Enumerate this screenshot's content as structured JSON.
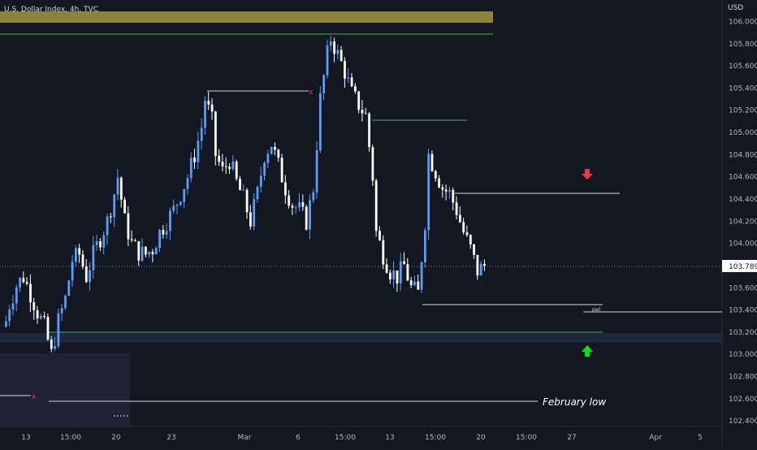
{
  "header": {
    "symbol_title": "U.S. Dollar Index, 4h, TVC"
  },
  "price_axis": {
    "currency_label": "USD",
    "ticks": [
      "106.000",
      "105.800",
      "105.600",
      "105.400",
      "105.200",
      "105.000",
      "104.800",
      "104.600",
      "104.400",
      "104.200",
      "104.000",
      "103.600",
      "103.400",
      "103.200",
      "103.000",
      "102.800",
      "102.600",
      "102.400"
    ],
    "current_price_label": "103.789"
  },
  "time_axis": {
    "ticks": [
      "13",
      "15:00",
      "20",
      "23",
      "Mar",
      "6",
      "15:00",
      "13",
      "15:00",
      "20",
      "15:00",
      "27",
      "Apr",
      "5"
    ]
  },
  "annotations": {
    "february_low_label": "February low",
    "pwl_label": "pwl"
  },
  "colors": {
    "background": "#131722",
    "candle_up": "#5b9cf6",
    "candle_down": "#ffffff",
    "level_green": "#4caf50",
    "level_white": "#d1d4dc",
    "supply_zone": "#8d8238",
    "demand_zone": "#1e2a3d",
    "arrow_down": "#f23645",
    "arrow_up": "#00e600",
    "x_marker": "#f23645"
  },
  "icons": {
    "bearish": "red-down-arrow-icon",
    "bullish": "green-up-arrow-icon",
    "sweep_marker": "x-marker-icon"
  },
  "chart_data": {
    "type": "candlestick",
    "title": "U.S. Dollar Index, 4h, TVC",
    "ylabel": "USD",
    "ylim": [
      102.35,
      106.25
    ],
    "x_ticks": [
      "13",
      "15:00",
      "20",
      "23",
      "Mar",
      "6",
      "15:00",
      "13",
      "15:00",
      "20",
      "15:00",
      "27",
      "Apr",
      "5"
    ],
    "current_price": 103.789,
    "close_path": [
      {
        "i": 0,
        "p": 103.3
      },
      {
        "i": 1,
        "p": 103.45
      },
      {
        "i": 3,
        "p": 103.62
      },
      {
        "i": 5,
        "p": 103.7
      },
      {
        "i": 7,
        "p": 103.55
      },
      {
        "i": 9,
        "p": 103.38
      },
      {
        "i": 11,
        "p": 103.25
      },
      {
        "i": 13,
        "p": 103.0
      },
      {
        "i": 15,
        "p": 103.3
      },
      {
        "i": 17,
        "p": 103.5
      },
      {
        "i": 19,
        "p": 103.85
      },
      {
        "i": 21,
        "p": 103.9
      },
      {
        "i": 23,
        "p": 103.7
      },
      {
        "i": 25,
        "p": 103.9
      },
      {
        "i": 27,
        "p": 104.05
      },
      {
        "i": 29,
        "p": 104.2
      },
      {
        "i": 31,
        "p": 104.45
      },
      {
        "i": 32,
        "p": 104.6
      },
      {
        "i": 34,
        "p": 104.2
      },
      {
        "i": 36,
        "p": 104.0
      },
      {
        "i": 38,
        "p": 103.92
      },
      {
        "i": 40,
        "p": 103.9
      },
      {
        "i": 42,
        "p": 103.95
      },
      {
        "i": 44,
        "p": 104.1
      },
      {
        "i": 46,
        "p": 104.2
      },
      {
        "i": 48,
        "p": 104.3
      },
      {
        "i": 50,
        "p": 104.45
      },
      {
        "i": 52,
        "p": 104.6
      },
      {
        "i": 54,
        "p": 104.8
      },
      {
        "i": 56,
        "p": 105.05
      },
      {
        "i": 57,
        "p": 105.3
      },
      {
        "i": 59,
        "p": 105.1
      },
      {
        "i": 60,
        "p": 104.8
      },
      {
        "i": 62,
        "p": 104.65
      },
      {
        "i": 64,
        "p": 104.75
      },
      {
        "i": 66,
        "p": 104.55
      },
      {
        "i": 68,
        "p": 104.4
      },
      {
        "i": 70,
        "p": 104.2
      },
      {
        "i": 72,
        "p": 104.45
      },
      {
        "i": 74,
        "p": 104.8
      },
      {
        "i": 76,
        "p": 104.9
      },
      {
        "i": 78,
        "p": 104.7
      },
      {
        "i": 80,
        "p": 104.5
      },
      {
        "i": 82,
        "p": 104.35
      },
      {
        "i": 84,
        "p": 104.3
      },
      {
        "i": 86,
        "p": 104.2
      },
      {
        "i": 88,
        "p": 104.5
      },
      {
        "i": 90,
        "p": 105.3
      },
      {
        "i": 92,
        "p": 105.7
      },
      {
        "i": 93,
        "p": 105.85
      },
      {
        "i": 95,
        "p": 105.7
      },
      {
        "i": 97,
        "p": 105.55
      },
      {
        "i": 99,
        "p": 105.35
      },
      {
        "i": 101,
        "p": 105.25
      },
      {
        "i": 103,
        "p": 105.15
      },
      {
        "i": 105,
        "p": 104.6
      },
      {
        "i": 106,
        "p": 104.1
      },
      {
        "i": 108,
        "p": 103.9
      },
      {
        "i": 110,
        "p": 103.75
      },
      {
        "i": 112,
        "p": 103.7
      },
      {
        "i": 114,
        "p": 103.8
      },
      {
        "i": 116,
        "p": 103.6
      },
      {
        "i": 118,
        "p": 103.55
      },
      {
        "i": 120,
        "p": 104.2
      },
      {
        "i": 121,
        "p": 104.8
      },
      {
        "i": 123,
        "p": 104.65
      },
      {
        "i": 125,
        "p": 104.5
      },
      {
        "i": 127,
        "p": 104.45
      },
      {
        "i": 129,
        "p": 104.3
      },
      {
        "i": 131,
        "p": 104.1
      },
      {
        "i": 133,
        "p": 103.95
      },
      {
        "i": 135,
        "p": 103.75
      },
      {
        "i": 137,
        "p": 103.8
      }
    ],
    "zones": [
      {
        "name": "supply zone",
        "y_low": 106.04,
        "y_high": 106.12
      },
      {
        "name": "demand zone",
        "y_low": 103.1,
        "y_high": 103.18
      }
    ],
    "levels": [
      {
        "name": "high level",
        "price": 105.9,
        "color": "green"
      },
      {
        "name": "swept high",
        "price": 105.39,
        "color": "white"
      },
      {
        "name": "intraday level",
        "price": 105.11,
        "color": "green"
      },
      {
        "name": "resistance",
        "price": 104.45,
        "color": "white"
      },
      {
        "name": "march low",
        "price": 103.45,
        "color": "white"
      },
      {
        "name": "pwl",
        "price": 103.38,
        "color": "white"
      },
      {
        "name": "support",
        "price": 103.2,
        "color": "green"
      },
      {
        "name": "swept low",
        "price": 102.7,
        "color": "white"
      },
      {
        "name": "February low",
        "price": 102.6,
        "color": "white"
      }
    ]
  }
}
